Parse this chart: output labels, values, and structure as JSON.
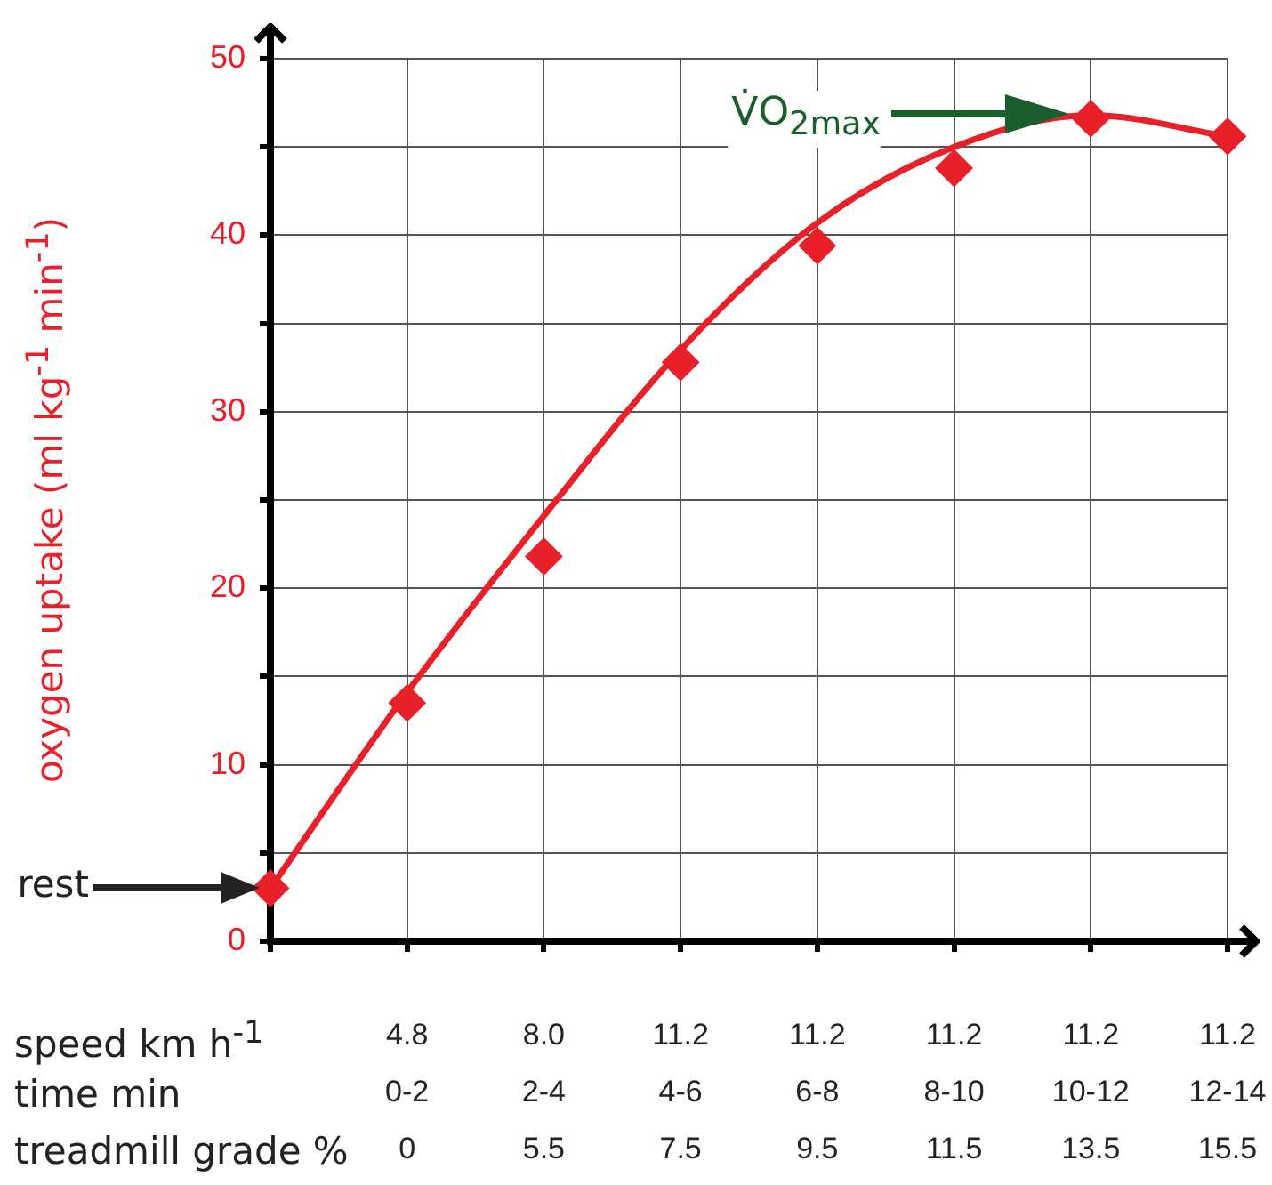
{
  "chart_data": {
    "type": "scatter",
    "ylabel": "oxygen uptake (ml kg$^{-1}$ min$^{-1}$)",
    "xlabel": "speed km h$^{-1}$\ntime min\ntreadmill grade %",
    "categories": [
      null,
      "4.8\n0-2\n0",
      "8.0\n2-4\n5.5",
      "11.2\n4-6\n7.5",
      "11.2\n6-8\n9.5",
      "11.2\n8-10\n11.5",
      "11.2\n10-12\n13.5",
      "11.2\n12-14\n15.5"
    ],
    "series": [
      {
        "color": "#e8202a",
        "values": [
          3.0,
          13.5,
          21.8,
          32.8,
          39.4,
          43.8,
          46.6,
          45.6
        ]
      },
      {
        "type": "line",
        "color": "#e8202a",
        "marker": "none",
        "values": [
          3.0,
          14.1,
          24.1,
          33.5,
          40.7,
          45.0,
          46.8,
          45.6
        ]
      }
    ],
    "ylim": [
      0,
      50
    ],
    "yticks": [
      0,
      {
        "value": 5,
        "label": null
      },
      10,
      {
        "value": 15,
        "label": null
      },
      20,
      {
        "value": 25,
        "label": null
      },
      30,
      {
        "value": 35,
        "label": null
      },
      40,
      {
        "value": 45,
        "label": null
      },
      50
    ],
    "grid": true,
    "marker": "diamond",
    "annotations": [
      "rest",
      "V̇O$_{2max}$"
    ]
  }
}
